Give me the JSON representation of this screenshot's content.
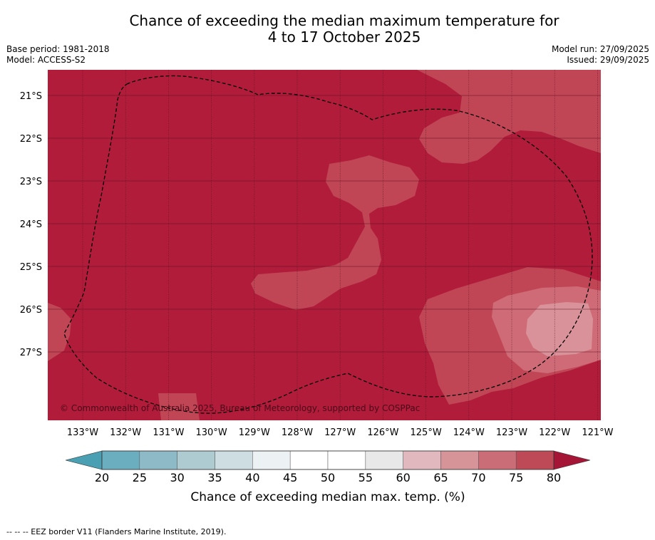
{
  "title": {
    "line1": "Chance of exceeding the median maximum temperature for",
    "line2": "4 to 17 October 2025"
  },
  "meta": {
    "base_period": "Base period: 1981-2018",
    "model": "Model: ACCESS-S2",
    "model_run": "Model run: 27/09/2025",
    "issued": "Issued: 29/09/2025"
  },
  "map": {
    "lon_labels": [
      "133°W",
      "132°W",
      "131°W",
      "130°W",
      "129°W",
      "128°W",
      "127°W",
      "126°W",
      "125°W",
      "124°W",
      "123°W",
      "122°W",
      "121°W"
    ],
    "lat_labels": [
      "21°S",
      "22°S",
      "23°S",
      "24°S",
      "25°S",
      "26°S",
      "27°S"
    ],
    "copyright": "© Commonwealth of Australia 2025, Bureau of Meteorology, supported by COSPPac",
    "background_class": "80",
    "region_classes": [
      "75",
      "70",
      "65"
    ],
    "colors": {
      "c80": "#b01c3a",
      "c75": "#c04656",
      "c70": "#cf6b77",
      "c65": "#d99299",
      "grid": "#5a1020",
      "border": "#000000"
    }
  },
  "colorbar": {
    "ticks": [
      "20",
      "25",
      "30",
      "35",
      "40",
      "45",
      "50",
      "55",
      "60",
      "65",
      "70",
      "75",
      "80"
    ],
    "colors": [
      "#6aaebf",
      "#8dbac6",
      "#aecbd1",
      "#cdddE1",
      "#ecf2f4",
      "#ffffff",
      "#ffffff",
      "#e8e8e8",
      "#e0b8bd",
      "#d69398",
      "#ca6d77",
      "#bf4a57"
    ],
    "low_color": "#4a9fb3",
    "high_color": "#a51536",
    "label": "Chance of exceeding median max. temp. (%)"
  },
  "footnote": "--  --  -- EEZ border V11 (Flanders Marine Institute, 2019)."
}
